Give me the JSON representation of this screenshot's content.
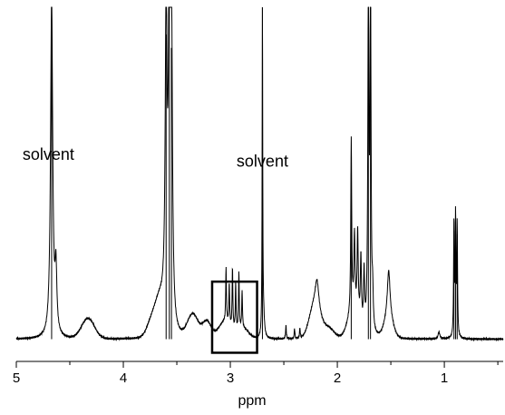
{
  "chart_data": {
    "type": "line",
    "title": "",
    "xlabel": "ppm",
    "ylabel": "",
    "x_reversed": true,
    "xlim": [
      5.0,
      0.45
    ],
    "ylim": [
      0,
      100
    ],
    "ticks": [
      5,
      4,
      3,
      2,
      1
    ],
    "grid": false,
    "baseline": 2,
    "broad_features": [
      {
        "center": 4.33,
        "height": 6,
        "width": 0.06
      },
      {
        "center": 3.72,
        "height": 6,
        "width": 0.05
      },
      {
        "center": 3.65,
        "height": 8,
        "width": 0.04
      },
      {
        "center": 3.35,
        "height": 7,
        "width": 0.05
      },
      {
        "center": 3.22,
        "height": 5,
        "width": 0.04
      },
      {
        "center": 3.05,
        "height": 5,
        "width": 0.06
      },
      {
        "center": 2.88,
        "height": 3,
        "width": 0.05
      },
      {
        "center": 2.21,
        "height": 10,
        "width": 0.05
      },
      {
        "center": 2.08,
        "height": 3,
        "width": 0.05
      },
      {
        "center": 1.85,
        "height": 8,
        "width": 0.05
      },
      {
        "center": 1.52,
        "height": 6,
        "width": 0.04
      }
    ],
    "peaks": [
      {
        "ppm": 4.67,
        "height": 100,
        "width": 0.012
      },
      {
        "ppm": 4.63,
        "height": 18,
        "width": 0.01
      },
      {
        "ppm": 3.6,
        "height": 92,
        "width": 0.01
      },
      {
        "ppm": 3.57,
        "height": 100,
        "width": 0.01
      },
      {
        "ppm": 3.55,
        "height": 88,
        "width": 0.01
      },
      {
        "ppm": 3.04,
        "height": 16,
        "width": 0.004
      },
      {
        "ppm": 3.01,
        "height": 12,
        "width": 0.004
      },
      {
        "ppm": 2.98,
        "height": 18,
        "width": 0.004
      },
      {
        "ppm": 2.95,
        "height": 14,
        "width": 0.004
      },
      {
        "ppm": 2.92,
        "height": 17,
        "width": 0.004
      },
      {
        "ppm": 2.89,
        "height": 11,
        "width": 0.004
      },
      {
        "ppm": 2.7,
        "height": 100,
        "width": 0.003
      },
      {
        "ppm": 2.69,
        "height": 6,
        "width": 0.01
      },
      {
        "ppm": 2.48,
        "height": 4,
        "width": 0.004
      },
      {
        "ppm": 2.4,
        "height": 3,
        "width": 0.004
      },
      {
        "ppm": 2.35,
        "height": 3,
        "width": 0.004
      },
      {
        "ppm": 2.19,
        "height": 8,
        "width": 0.02
      },
      {
        "ppm": 1.87,
        "height": 51,
        "width": 0.005
      },
      {
        "ppm": 1.84,
        "height": 22,
        "width": 0.006
      },
      {
        "ppm": 1.81,
        "height": 25,
        "width": 0.006
      },
      {
        "ppm": 1.78,
        "height": 20,
        "width": 0.006
      },
      {
        "ppm": 1.75,
        "height": 17,
        "width": 0.006
      },
      {
        "ppm": 1.71,
        "height": 100,
        "width": 0.006
      },
      {
        "ppm": 1.69,
        "height": 100,
        "width": 0.006
      },
      {
        "ppm": 1.67,
        "height": 10,
        "width": 0.006
      },
      {
        "ppm": 1.52,
        "height": 14,
        "width": 0.015
      },
      {
        "ppm": 1.05,
        "height": 2,
        "width": 0.01
      },
      {
        "ppm": 0.91,
        "height": 34,
        "width": 0.004
      },
      {
        "ppm": 0.895,
        "height": 35,
        "width": 0.004
      },
      {
        "ppm": 0.88,
        "height": 33,
        "width": 0.004
      }
    ],
    "annotations": [
      {
        "text": "solvent",
        "ppm": 4.7,
        "y": 55
      },
      {
        "text": "solvent",
        "ppm": 2.7,
        "y": 53
      }
    ],
    "highlight_box": {
      "ppm_range": [
        3.17,
        2.75
      ],
      "y_range": [
        -2,
        19
      ]
    },
    "colors": {
      "line": "#000000",
      "background": "#ffffff"
    }
  }
}
